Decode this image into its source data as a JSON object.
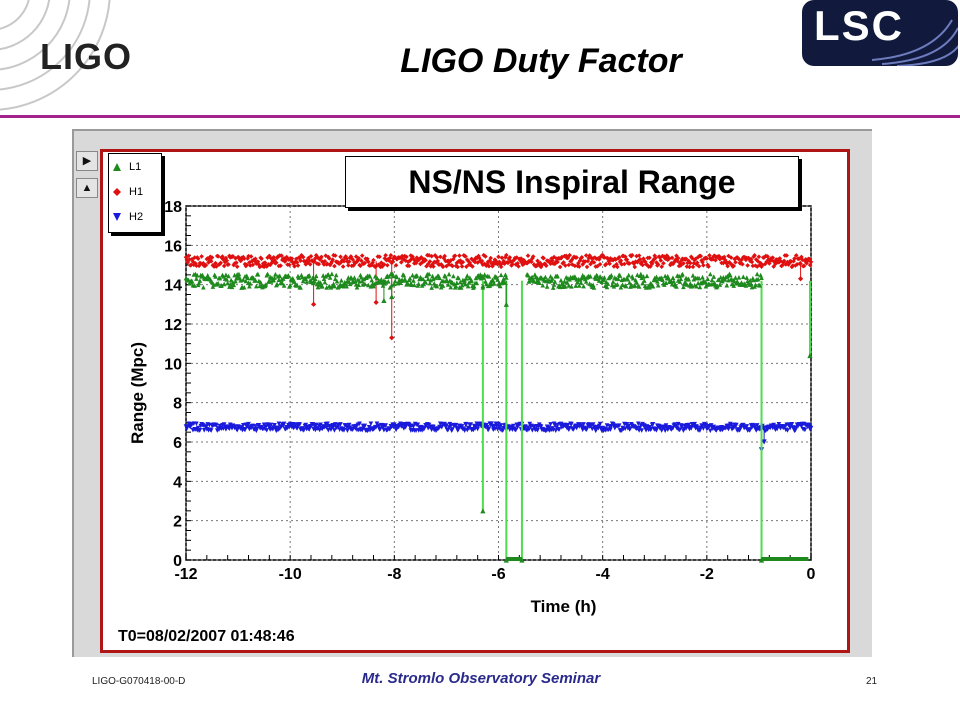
{
  "slide": {
    "title": "LIGO Duty Factor",
    "logo_left": "LIGO",
    "logo_right": "LSC",
    "footer_id": "LIGO-G070418-00-D",
    "footer_seminar": "Mt. Stromlo Observatory Seminar",
    "page_number": "21",
    "accent_color": "#a3238e"
  },
  "panel": {
    "nav_right_icon": "arrow-right-icon",
    "nav_up_icon": "arrow-up-icon",
    "t0_label": "T0=08/02/2007 01:48:46"
  },
  "chart_data": {
    "type": "scatter",
    "title": "NS/NS Inspiral Range",
    "xlabel": "Time (h)",
    "ylabel": "Range (Mpc)",
    "xlim": [
      -12,
      0
    ],
    "ylim": [
      0,
      18
    ],
    "xticks": [
      -12,
      -10,
      -8,
      -6,
      -4,
      -2,
      0
    ],
    "yticks": [
      0,
      2,
      4,
      6,
      8,
      10,
      12,
      14,
      16,
      18
    ],
    "grid": true,
    "legend_position": "top-left",
    "series": [
      {
        "name": "L1",
        "color": "#1e8a1e",
        "line_color": "#4fdc4f",
        "marker": "triangle-up",
        "baseline": 14.2,
        "noise": 0.35,
        "segments": [
          [
            -12,
            -6.3
          ],
          [
            -6.3,
            -5.85
          ],
          [
            -5.45,
            -0.95
          ]
        ],
        "drops": [
          {
            "x": -6.3,
            "y": 2.5
          },
          {
            "x": -5.85,
            "y": 0
          },
          {
            "x": -5.55,
            "y": 0
          },
          {
            "x": -0.95,
            "y": 0
          },
          {
            "x": -0.02,
            "y": 10.4
          }
        ],
        "zero_runs": [
          [
            -5.85,
            -5.55
          ],
          [
            -0.95,
            -0.05
          ]
        ],
        "points": [
          {
            "x": -8.2,
            "y": 13.2
          },
          {
            "x": -8.05,
            "y": 13.4
          },
          {
            "x": -5.85,
            "y": 13.0
          }
        ]
      },
      {
        "name": "H1",
        "color": "#e01010",
        "marker": "diamond",
        "baseline": 15.2,
        "noise": 0.3,
        "segments": [
          [
            -12,
            0
          ]
        ],
        "points": [
          {
            "x": -9.55,
            "y": 13.0
          },
          {
            "x": -8.35,
            "y": 13.1
          },
          {
            "x": -8.05,
            "y": 11.3
          },
          {
            "x": -0.2,
            "y": 14.3
          }
        ]
      },
      {
        "name": "H2",
        "color": "#1a1adc",
        "marker": "triangle-down",
        "baseline": 6.75,
        "noise": 0.18,
        "segments": [
          [
            -12,
            0
          ]
        ],
        "points": [
          {
            "x": -0.95,
            "y": 5.6
          },
          {
            "x": -0.9,
            "y": 6.0
          }
        ]
      }
    ]
  }
}
